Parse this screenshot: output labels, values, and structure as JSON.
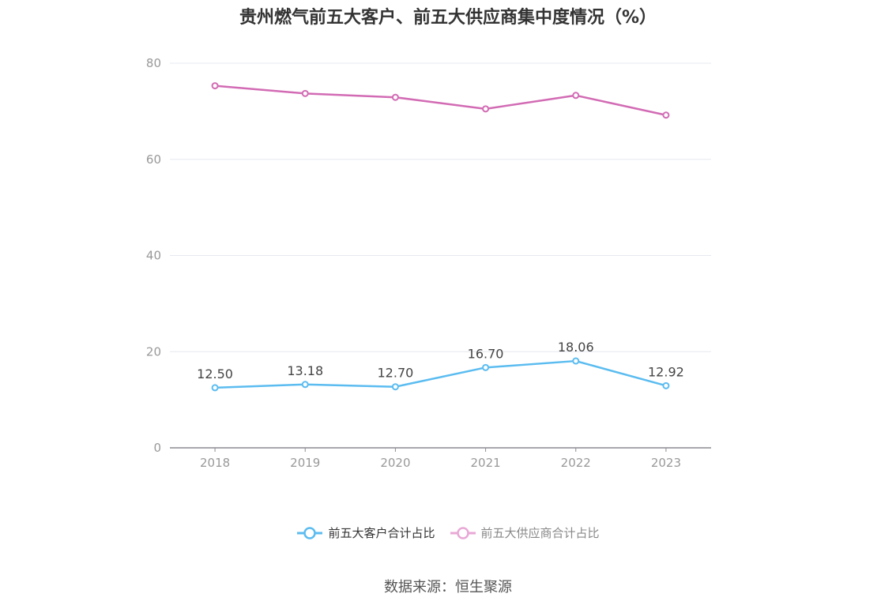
{
  "chart_data": {
    "type": "line",
    "title": "贵州燃气前五大客户、前五大供应商集中度情况（%）",
    "categories": [
      "2018",
      "2019",
      "2020",
      "2021",
      "2022",
      "2023"
    ],
    "series": [
      {
        "name": "前五大客户合计占比",
        "values": [
          12.5,
          13.18,
          12.7,
          16.7,
          18.06,
          12.92
        ],
        "value_labels": [
          "12.50",
          "13.18",
          "12.70",
          "16.70",
          "18.06",
          "12.92"
        ],
        "color": "#5bbcf0",
        "show_labels": true
      },
      {
        "name": "前五大供应商合计占比",
        "values": [
          75.3,
          73.7,
          72.9,
          70.5,
          73.3,
          69.2
        ],
        "color": "#d26bb4",
        "show_labels": false
      }
    ],
    "ylim": [
      0,
      80
    ],
    "yticks": [
      0,
      20,
      40,
      60,
      80
    ],
    "grid": true,
    "legend_position": "bottom",
    "source": "数据来源：恒生聚源"
  }
}
